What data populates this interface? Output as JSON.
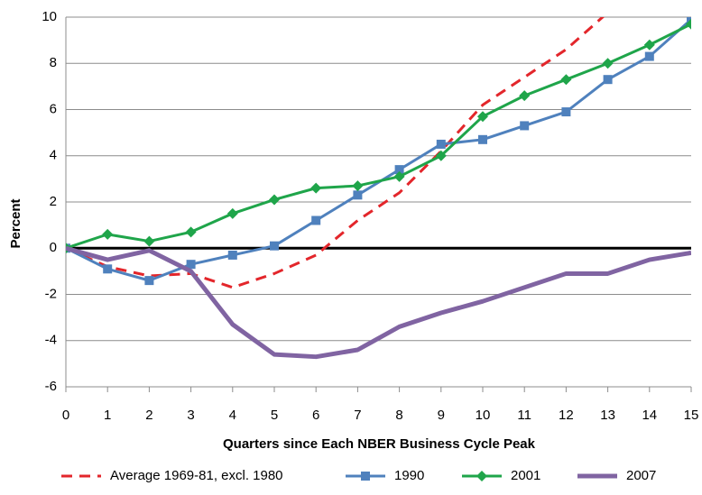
{
  "chart_data": {
    "type": "line",
    "x_label": "Quarters since Each NBER Business Cycle Peak",
    "y_label": "Percent",
    "x": [
      0,
      1,
      2,
      3,
      4,
      5,
      6,
      7,
      8,
      9,
      10,
      11,
      12,
      13,
      14,
      15
    ],
    "xlim": [
      0,
      15
    ],
    "xticks": [
      0,
      1,
      2,
      3,
      4,
      5,
      6,
      7,
      8,
      9,
      10,
      11,
      12,
      13,
      14,
      15
    ],
    "ylim": [
      -6,
      10
    ],
    "yticks": [
      -6,
      -4,
      -2,
      0,
      2,
      4,
      6,
      8,
      10
    ],
    "grid": true,
    "legend": "bottom",
    "series": [
      {
        "name": "Average 1969-81, excl. 1980",
        "color": "#e3262b",
        "dash": true,
        "marker": "none",
        "values": [
          0,
          -0.8,
          -1.2,
          -1.1,
          -1.7,
          -1.1,
          -0.3,
          1.2,
          2.4,
          4.2,
          6.2,
          7.4,
          8.6,
          10.2,
          null,
          null
        ]
      },
      {
        "name": "1990",
        "color": "#4f81bd",
        "dash": false,
        "marker": "square",
        "values": [
          0,
          -0.9,
          -1.4,
          -0.7,
          -0.3,
          0.1,
          1.2,
          2.3,
          3.4,
          4.5,
          4.7,
          5.3,
          5.9,
          7.3,
          8.3,
          9.9
        ]
      },
      {
        "name": "2001",
        "color": "#1fa54a",
        "dash": false,
        "marker": "diamond",
        "values": [
          0,
          0.6,
          0.3,
          0.7,
          1.5,
          2.1,
          2.6,
          2.7,
          3.1,
          4.0,
          5.7,
          6.6,
          7.3,
          8.0,
          8.8,
          9.7
        ]
      },
      {
        "name": "2007",
        "color": "#8064a2",
        "dash": false,
        "marker": "none",
        "values": [
          0,
          -0.5,
          -0.1,
          -1.0,
          -3.3,
          -4.6,
          -4.7,
          -4.4,
          -3.4,
          -2.8,
          -2.3,
          -1.7,
          -1.1,
          -1.1,
          -0.5,
          -0.2
        ]
      }
    ]
  }
}
